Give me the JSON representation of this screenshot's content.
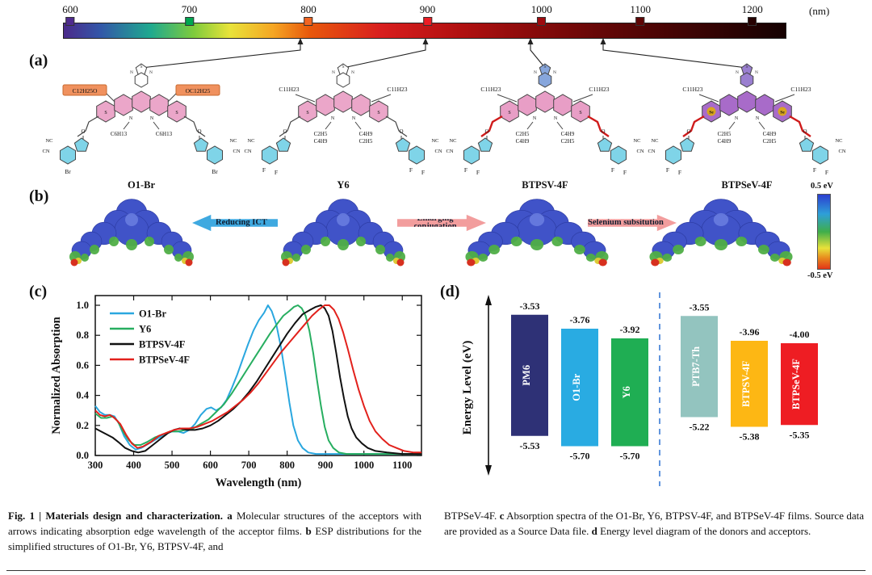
{
  "panels": {
    "a": "(a)",
    "b": "(b)",
    "c": "(c)",
    "d": "(d)"
  },
  "wavelength_bar": {
    "unit": "(nm)",
    "ticks": [
      {
        "label": "600",
        "color": "#4f2b8e",
        "pos": 0.01
      },
      {
        "label": "700",
        "color": "#00a651",
        "pos": 0.175
      },
      {
        "label": "800",
        "color": "#f26522",
        "pos": 0.34
      },
      {
        "label": "900",
        "color": "#ed1c24",
        "pos": 0.505
      },
      {
        "label": "1000",
        "color": "#9e0b0f",
        "pos": 0.663
      },
      {
        "label": "1100",
        "color": "#5f0606",
        "pos": 0.8
      },
      {
        "label": "1200",
        "color": "#270202",
        "pos": 0.955
      }
    ],
    "edge_arrows_nm": [
      790,
      900,
      985,
      1060
    ]
  },
  "molecules": [
    {
      "name": "O1-Br",
      "core_color": "#eba6c9",
      "top_fill": "#ffffff",
      "end_color": "#7fd4e8",
      "left_top": "C12H25O",
      "right_top": "OC12H25",
      "boxed": true,
      "box_color": "#f0915e",
      "n_chains": [
        [
          "C6H13"
        ],
        [
          "C6H13"
        ]
      ],
      "nc": "NC",
      "cn": "CN",
      "o": "O",
      "bottom": [
        "Br"
      ],
      "hetero": "S",
      "linker": null
    },
    {
      "name": "Y6",
      "core_color": "#eba6c9",
      "top_fill": "#ffffff",
      "end_color": "#7fd4e8",
      "left_top": "C11H23",
      "right_top": "C11H23",
      "boxed": false,
      "n_chains": [
        [
          "C2H5",
          "C4H9"
        ],
        [
          "C4H9",
          "C2H5"
        ]
      ],
      "nc": "NC",
      "cn": "CN",
      "o": "O",
      "bottom": [
        "F",
        "F"
      ],
      "hetero": "S",
      "linker": null
    },
    {
      "name": "BTPSV-4F",
      "core_color": "#e89ec6",
      "top_fill": "#87a6dc",
      "end_color": "#7fd4e8",
      "left_top": "C11H23",
      "right_top": "C11H23",
      "boxed": false,
      "n_chains": [
        [
          "C2H5",
          "C4H9"
        ],
        [
          "C4H9",
          "C2H5"
        ]
      ],
      "nc": "NC",
      "cn": "CN",
      "o": "O",
      "bottom": [
        "F",
        "F"
      ],
      "hetero": "S",
      "linker": "#cf1b1b"
    },
    {
      "name": "BTPSeV-4F",
      "core_color": "#a86bc9",
      "top_fill": "#9a7fd0",
      "end_color": "#7fd4e8",
      "left_top": "C11H23",
      "right_top": "C11H23",
      "boxed": false,
      "n_chains": [
        [
          "C2H5",
          "C4H9"
        ],
        [
          "C4H9",
          "C2H5"
        ]
      ],
      "nc": "NC",
      "cn": "CN",
      "o": "O",
      "bottom": [
        "F",
        "F"
      ],
      "hetero": "Se",
      "linker": "#cf1b1b"
    }
  ],
  "esp": {
    "arrows": [
      {
        "label": "Reducing ICT",
        "dir": "left",
        "color": "#3fa9e0"
      },
      {
        "label": "Enlarging conjugation",
        "dir": "right",
        "color": "#f29d9d"
      },
      {
        "label": "Selenium subsitution",
        "dir": "right",
        "color": "#f29d9d"
      }
    ],
    "colorbar": {
      "top": "0.5 eV",
      "bottom": "-0.5 eV"
    }
  },
  "chart_data": [
    {
      "type": "line",
      "panel": "c",
      "xlabel": "Wavelength (nm)",
      "ylabel": "Normalized Absorption",
      "xlim": [
        300,
        1150
      ],
      "ylim": [
        0,
        1.05
      ],
      "xticks": [
        300,
        400,
        500,
        600,
        700,
        800,
        900,
        1000,
        1100
      ],
      "yticks": [
        0.0,
        0.2,
        0.4,
        0.6,
        0.8,
        1.0
      ],
      "grid": false,
      "legend_position": "top-left",
      "series": [
        {
          "name": "O1-Br",
          "color": "#2aa7df",
          "pts": [
            [
              300,
              0.33
            ],
            [
              312,
              0.29
            ],
            [
              325,
              0.27
            ],
            [
              338,
              0.27
            ],
            [
              350,
              0.26
            ],
            [
              362,
              0.21
            ],
            [
              375,
              0.13
            ],
            [
              390,
              0.07
            ],
            [
              405,
              0.04
            ],
            [
              420,
              0.05
            ],
            [
              440,
              0.08
            ],
            [
              460,
              0.11
            ],
            [
              480,
              0.14
            ],
            [
              500,
              0.16
            ],
            [
              515,
              0.16
            ],
            [
              530,
              0.15
            ],
            [
              545,
              0.17
            ],
            [
              560,
              0.21
            ],
            [
              575,
              0.27
            ],
            [
              590,
              0.31
            ],
            [
              602,
              0.32
            ],
            [
              615,
              0.3
            ],
            [
              628,
              0.32
            ],
            [
              642,
              0.37
            ],
            [
              656,
              0.45
            ],
            [
              670,
              0.54
            ],
            [
              684,
              0.64
            ],
            [
              698,
              0.74
            ],
            [
              712,
              0.83
            ],
            [
              726,
              0.9
            ],
            [
              740,
              0.95
            ],
            [
              750,
              1.0
            ],
            [
              760,
              0.96
            ],
            [
              772,
              0.87
            ],
            [
              784,
              0.72
            ],
            [
              795,
              0.54
            ],
            [
              806,
              0.35
            ],
            [
              816,
              0.2
            ],
            [
              828,
              0.1
            ],
            [
              840,
              0.05
            ],
            [
              855,
              0.02
            ],
            [
              875,
              0.01
            ],
            [
              950,
              0.01
            ],
            [
              1050,
              0.01
            ],
            [
              1150,
              0.01
            ]
          ]
        },
        {
          "name": "Y6",
          "color": "#27ae60",
          "pts": [
            [
              300,
              0.28
            ],
            [
              315,
              0.25
            ],
            [
              330,
              0.25
            ],
            [
              345,
              0.26
            ],
            [
              358,
              0.23
            ],
            [
              372,
              0.16
            ],
            [
              388,
              0.1
            ],
            [
              402,
              0.07
            ],
            [
              418,
              0.07
            ],
            [
              435,
              0.09
            ],
            [
              455,
              0.12
            ],
            [
              475,
              0.14
            ],
            [
              495,
              0.16
            ],
            [
              515,
              0.16
            ],
            [
              535,
              0.17
            ],
            [
              555,
              0.18
            ],
            [
              575,
              0.21
            ],
            [
              595,
              0.24
            ],
            [
              615,
              0.29
            ],
            [
              635,
              0.34
            ],
            [
              655,
              0.41
            ],
            [
              675,
              0.49
            ],
            [
              695,
              0.57
            ],
            [
              715,
              0.65
            ],
            [
              735,
              0.73
            ],
            [
              755,
              0.81
            ],
            [
              775,
              0.88
            ],
            [
              790,
              0.93
            ],
            [
              805,
              0.96
            ],
            [
              818,
              0.99
            ],
            [
              828,
              1.0
            ],
            [
              838,
              0.98
            ],
            [
              848,
              0.93
            ],
            [
              858,
              0.83
            ],
            [
              868,
              0.68
            ],
            [
              878,
              0.5
            ],
            [
              888,
              0.33
            ],
            [
              898,
              0.19
            ],
            [
              908,
              0.1
            ],
            [
              920,
              0.05
            ],
            [
              935,
              0.02
            ],
            [
              955,
              0.01
            ],
            [
              1000,
              0.01
            ],
            [
              1150,
              0.01
            ]
          ]
        },
        {
          "name": "BTPSV-4F",
          "color": "#111111",
          "pts": [
            [
              300,
              0.18
            ],
            [
              315,
              0.16
            ],
            [
              330,
              0.14
            ],
            [
              345,
              0.12
            ],
            [
              360,
              0.09
            ],
            [
              378,
              0.05
            ],
            [
              395,
              0.03
            ],
            [
              412,
              0.02
            ],
            [
              430,
              0.03
            ],
            [
              450,
              0.07
            ],
            [
              470,
              0.11
            ],
            [
              490,
              0.15
            ],
            [
              505,
              0.17
            ],
            [
              520,
              0.18
            ],
            [
              540,
              0.17
            ],
            [
              560,
              0.17
            ],
            [
              580,
              0.18
            ],
            [
              600,
              0.2
            ],
            [
              620,
              0.23
            ],
            [
              640,
              0.27
            ],
            [
              660,
              0.31
            ],
            [
              680,
              0.36
            ],
            [
              700,
              0.42
            ],
            [
              720,
              0.49
            ],
            [
              740,
              0.57
            ],
            [
              760,
              0.65
            ],
            [
              780,
              0.73
            ],
            [
              800,
              0.81
            ],
            [
              820,
              0.88
            ],
            [
              840,
              0.94
            ],
            [
              860,
              0.97
            ],
            [
              875,
              0.99
            ],
            [
              888,
              1.0
            ],
            [
              898,
              0.98
            ],
            [
              908,
              0.93
            ],
            [
              918,
              0.83
            ],
            [
              928,
              0.68
            ],
            [
              938,
              0.52
            ],
            [
              948,
              0.38
            ],
            [
              958,
              0.26
            ],
            [
              968,
              0.18
            ],
            [
              980,
              0.12
            ],
            [
              995,
              0.08
            ],
            [
              1010,
              0.05
            ],
            [
              1030,
              0.03
            ],
            [
              1060,
              0.02
            ],
            [
              1100,
              0.01
            ],
            [
              1150,
              0.01
            ]
          ]
        },
        {
          "name": "BTPSeV-4F",
          "color": "#e2211c",
          "pts": [
            [
              300,
              0.3
            ],
            [
              312,
              0.27
            ],
            [
              325,
              0.26
            ],
            [
              338,
              0.27
            ],
            [
              350,
              0.25
            ],
            [
              365,
              0.21
            ],
            [
              380,
              0.14
            ],
            [
              395,
              0.08
            ],
            [
              410,
              0.05
            ],
            [
              425,
              0.06
            ],
            [
              445,
              0.09
            ],
            [
              465,
              0.13
            ],
            [
              485,
              0.15
            ],
            [
              505,
              0.17
            ],
            [
              525,
              0.18
            ],
            [
              545,
              0.18
            ],
            [
              565,
              0.19
            ],
            [
              585,
              0.21
            ],
            [
              605,
              0.23
            ],
            [
              625,
              0.26
            ],
            [
              645,
              0.29
            ],
            [
              665,
              0.33
            ],
            [
              685,
              0.37
            ],
            [
              705,
              0.42
            ],
            [
              725,
              0.48
            ],
            [
              745,
              0.55
            ],
            [
              765,
              0.62
            ],
            [
              785,
              0.69
            ],
            [
              805,
              0.75
            ],
            [
              825,
              0.81
            ],
            [
              845,
              0.87
            ],
            [
              865,
              0.93
            ],
            [
              882,
              0.97
            ],
            [
              898,
              1.0
            ],
            [
              910,
              1.0
            ],
            [
              922,
              0.97
            ],
            [
              934,
              0.91
            ],
            [
              946,
              0.82
            ],
            [
              958,
              0.71
            ],
            [
              972,
              0.57
            ],
            [
              986,
              0.44
            ],
            [
              1000,
              0.33
            ],
            [
              1015,
              0.23
            ],
            [
              1030,
              0.16
            ],
            [
              1048,
              0.11
            ],
            [
              1066,
              0.07
            ],
            [
              1085,
              0.05
            ],
            [
              1105,
              0.03
            ],
            [
              1130,
              0.02
            ],
            [
              1150,
              0.02
            ]
          ]
        }
      ]
    },
    {
      "type": "bar",
      "panel": "d",
      "subtype": "energy-level-diagram",
      "ylabel": "Energy Level (eV)",
      "divider_after_index": 2,
      "bars": [
        {
          "name": "PM6",
          "lumo": -3.53,
          "homo": -5.53,
          "color": "#2e3176"
        },
        {
          "name": "O1-Br",
          "lumo": -3.76,
          "homo": -5.7,
          "color": "#29abe2"
        },
        {
          "name": "Y6",
          "lumo": -3.92,
          "homo": -5.7,
          "color": "#1fae53"
        },
        {
          "name": "PTB7-Th",
          "lumo": -3.55,
          "homo": -5.22,
          "color": "#93c4bf"
        },
        {
          "name": "BTPSV-4F",
          "lumo": -3.96,
          "homo": -5.38,
          "color": "#fdb714"
        },
        {
          "name": "BTPSeV-4F",
          "lumo": -4.0,
          "homo": -5.35,
          "color": "#ee1d23"
        }
      ]
    }
  ],
  "caption": {
    "left": [
      {
        "t": "Fig. 1 | Materials design and characterization. ",
        "b": true
      },
      {
        "t": "a",
        "b": true
      },
      {
        "t": " Molecular structures of the acceptors with arrows indicating absorption edge wavelength of the acceptor films. ",
        "b": false
      },
      {
        "t": "b",
        "b": true
      },
      {
        "t": " ESP distributions for the simplified structures of O1-Br, Y6, BTPSV-4F, and",
        "b": false
      }
    ],
    "right": [
      {
        "t": "BTPSeV-4F. ",
        "b": false
      },
      {
        "t": "c",
        "b": true
      },
      {
        "t": " Absorption spectra of the O1-Br, Y6, BTPSV-4F, and BTPSeV-4F films. Source data are provided as a Source Data file. ",
        "b": false
      },
      {
        "t": "d",
        "b": true
      },
      {
        "t": " Energy level diagram of the donors and acceptors.",
        "b": false
      }
    ]
  }
}
